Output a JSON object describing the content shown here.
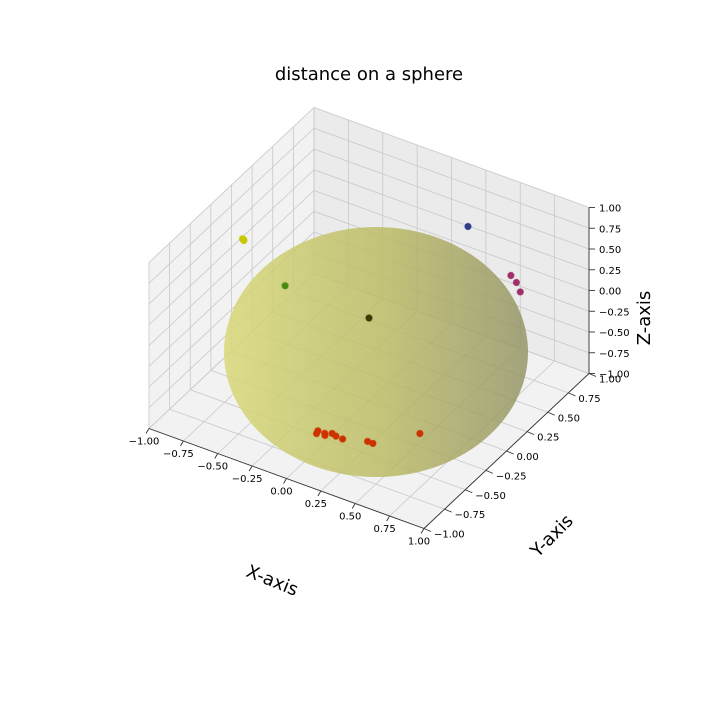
{
  "chart_data": {
    "type": "scatter3d",
    "title": "distance on a sphere",
    "xlabel": "X-axis",
    "ylabel": "Y-axis",
    "zlabel": "Z-axis",
    "xlim": [
      -1.0,
      1.0
    ],
    "ylim": [
      -1.0,
      1.0
    ],
    "zlim": [
      -1.0,
      1.0
    ],
    "xticks": [
      "−1.00",
      "−0.75",
      "−0.50",
      "−0.25",
      "0.00",
      "0.25",
      "0.50",
      "0.75",
      "1.00"
    ],
    "yticks": [
      "−1.00",
      "−0.75",
      "−0.50",
      "−0.25",
      "0.00",
      "0.25",
      "0.50",
      "0.75",
      "1.00"
    ],
    "zticks": [
      "−1.00",
      "−0.75",
      "−0.50",
      "−0.25",
      "0.00",
      "0.25",
      "0.50",
      "0.75",
      "1.00"
    ],
    "grid": true,
    "surface": {
      "shape": "unit sphere",
      "color": "#c8c850"
    },
    "points": [
      {
        "x": 0.3,
        "y": 0.7,
        "z": 0.63,
        "color": "#2e3b8c"
      },
      {
        "x": 0.72,
        "y": 0.52,
        "z": 0.46,
        "color": "#a0306a"
      },
      {
        "x": 0.76,
        "y": 0.52,
        "z": 0.4,
        "color": "#a0306a"
      },
      {
        "x": 0.8,
        "y": 0.5,
        "z": 0.33,
        "color": "#a0306a"
      },
      {
        "x": -0.9,
        "y": -0.02,
        "z": 0.42,
        "color": "#c8c800"
      },
      {
        "x": -0.88,
        "y": -0.05,
        "z": 0.45,
        "color": "#c8c800"
      },
      {
        "x": -0.92,
        "y": 0.0,
        "z": 0.4,
        "color": "#c8c800"
      },
      {
        "x": -0.55,
        "y": -0.1,
        "z": 0.15,
        "color": "#4a8a10"
      },
      {
        "x": 0.0,
        "y": 0.0,
        "z": 0.0,
        "color": "#3a3a00"
      },
      {
        "x": 0.55,
        "y": -0.3,
        "z": -0.78,
        "color": "#cc3300"
      },
      {
        "x": 0.32,
        "y": -0.55,
        "z": -0.78,
        "color": "#cc3300"
      },
      {
        "x": 0.34,
        "y": -0.52,
        "z": -0.82,
        "color": "#cc3300"
      },
      {
        "x": 0.08,
        "y": -0.58,
        "z": -0.8,
        "color": "#cc3300"
      },
      {
        "x": 0.05,
        "y": -0.62,
        "z": -0.78,
        "color": "#cc3300"
      },
      {
        "x": 0.0,
        "y": -0.62,
        "z": -0.78,
        "color": "#cc3300"
      },
      {
        "x": 0.12,
        "y": -0.6,
        "z": -0.79,
        "color": "#cc3300"
      },
      {
        "x": 0.18,
        "y": -0.62,
        "z": -0.77,
        "color": "#cc3300"
      },
      {
        "x": 0.05,
        "y": -0.72,
        "z": -0.69,
        "color": "#cc3300"
      },
      {
        "x": 0.1,
        "y": -0.7,
        "z": -0.7,
        "color": "#cc3300"
      }
    ]
  }
}
